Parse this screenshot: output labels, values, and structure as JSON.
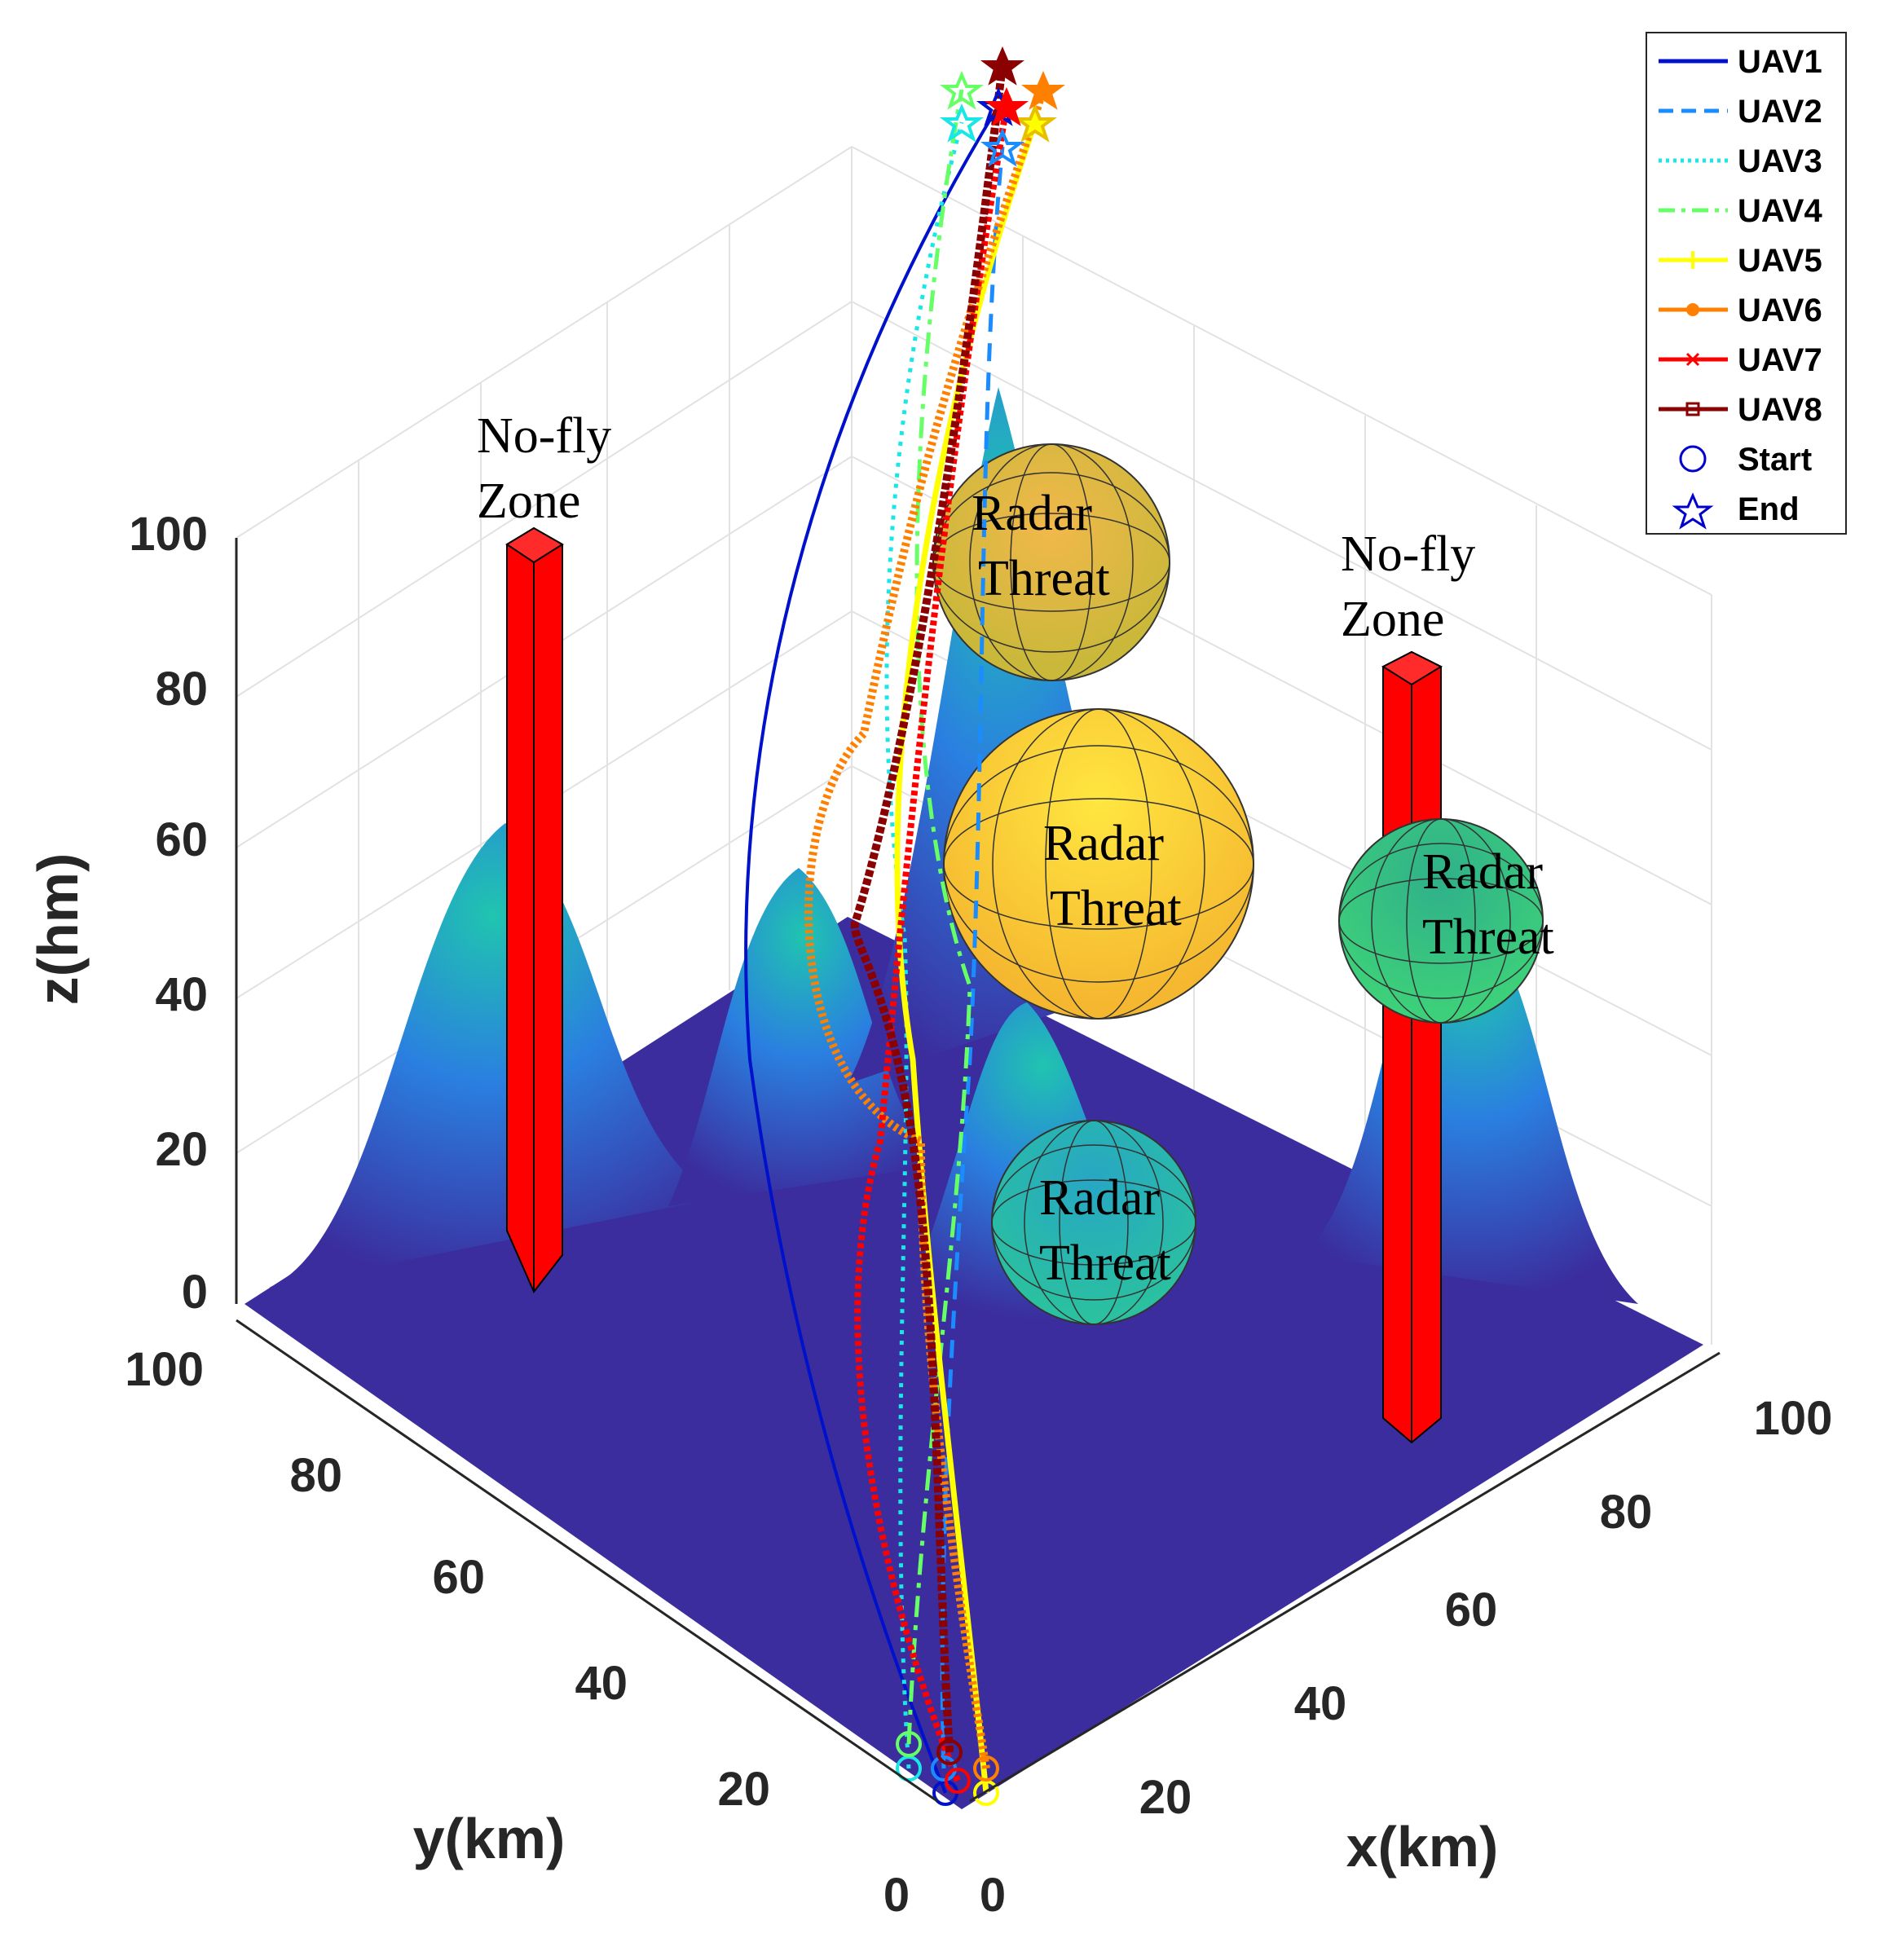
{
  "chart_data": {
    "type": "line",
    "title": "",
    "xlabel": "x(km)",
    "ylabel": "y(km)",
    "zlabel": "z(hm)",
    "xlim": [
      0,
      100
    ],
    "ylim": [
      0,
      100
    ],
    "zlim": [
      0,
      100
    ],
    "x_ticks": [
      "0",
      "20",
      "40",
      "60",
      "80",
      "100"
    ],
    "y_ticks": [
      "0",
      "20",
      "40",
      "60",
      "80",
      "100"
    ],
    "z_ticks": [
      "0",
      "20",
      "40",
      "60",
      "80",
      "100"
    ],
    "grid": true,
    "legend_position": "top-right",
    "colors": {
      "terrain_low": "#3b2d9e",
      "terrain_high": "#17b3b0",
      "nofly": "#ff0000",
      "start_marker": "#0000cc"
    },
    "series": [
      {
        "name": "UAV1",
        "color": "#0011cc",
        "style": "solid"
      },
      {
        "name": "UAV2",
        "color": "#1a8cff",
        "style": "dashed"
      },
      {
        "name": "UAV3",
        "color": "#19e6e6",
        "style": "dotted"
      },
      {
        "name": "UAV4",
        "color": "#66ff66",
        "style": "dashdot"
      },
      {
        "name": "UAV5",
        "color": "#ffff00",
        "style": "plus-marker"
      },
      {
        "name": "UAV6",
        "color": "#ff8000",
        "style": "dot-marker"
      },
      {
        "name": "UAV7",
        "color": "#ff0000",
        "style": "x-marker"
      },
      {
        "name": "UAV8",
        "color": "#8b0000",
        "style": "square-marker"
      }
    ],
    "markers": [
      {
        "name": "Start",
        "symbol": "circle",
        "color": "#0000cc"
      },
      {
        "name": "End",
        "symbol": "star",
        "color": "#0000cc"
      }
    ],
    "annotations": {
      "nofly_1": [
        "No-fly",
        "Zone"
      ],
      "nofly_2": [
        "No-fly",
        "Zone"
      ],
      "radar_1": [
        "Radar",
        "Threat"
      ],
      "radar_2": [
        "Radar",
        "Threat"
      ],
      "radar_3": [
        "Radar",
        "Threat"
      ],
      "radar_4": [
        "Radar",
        "Threat"
      ]
    },
    "obstacles": {
      "nofly_zones": 2,
      "radar_threats": 4,
      "terrain_peaks": 6
    }
  }
}
